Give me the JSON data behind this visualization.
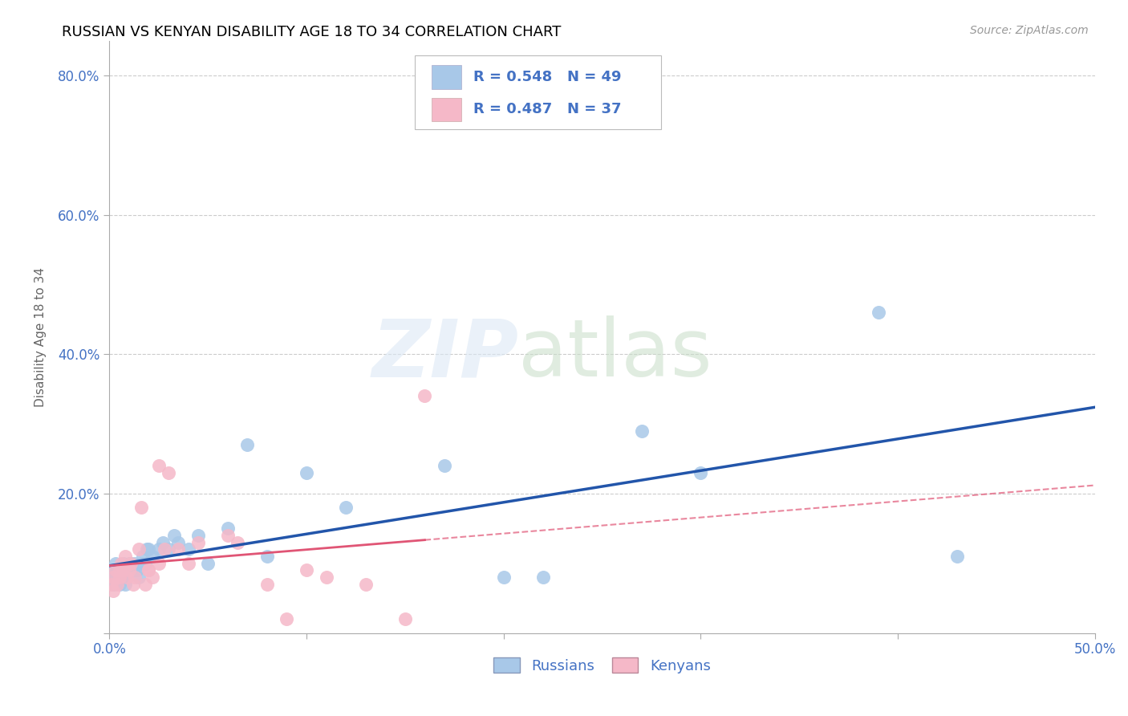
{
  "title": "RUSSIAN VS KENYAN DISABILITY AGE 18 TO 34 CORRELATION CHART",
  "source": "Source: ZipAtlas.com",
  "ylabel": "Disability Age 18 to 34",
  "xlim": [
    0.0,
    0.5
  ],
  "ylim": [
    0.0,
    0.85
  ],
  "xticks": [
    0.0,
    0.1,
    0.2,
    0.3,
    0.4,
    0.5
  ],
  "yticks": [
    0.0,
    0.2,
    0.4,
    0.6,
    0.8
  ],
  "xticklabels": [
    "0.0%",
    "",
    "",
    "",
    "",
    "50.0%"
  ],
  "yticklabels": [
    "",
    "20.0%",
    "40.0%",
    "60.0%",
    "80.0%"
  ],
  "russian_R": 0.548,
  "russian_N": 49,
  "kenyan_R": 0.487,
  "kenyan_N": 37,
  "russian_color": "#a8c8e8",
  "kenyan_color": "#f5b8c8",
  "russian_line_color": "#2255aa",
  "kenyan_line_color": "#e05575",
  "russians_x": [
    0.001,
    0.002,
    0.002,
    0.003,
    0.003,
    0.004,
    0.004,
    0.005,
    0.005,
    0.006,
    0.006,
    0.007,
    0.007,
    0.008,
    0.008,
    0.009,
    0.01,
    0.01,
    0.011,
    0.012,
    0.013,
    0.014,
    0.015,
    0.016,
    0.017,
    0.018,
    0.019,
    0.02,
    0.022,
    0.025,
    0.027,
    0.03,
    0.033,
    0.035,
    0.04,
    0.045,
    0.05,
    0.06,
    0.07,
    0.08,
    0.1,
    0.12,
    0.17,
    0.2,
    0.22,
    0.27,
    0.3,
    0.39,
    0.43
  ],
  "russians_y": [
    0.08,
    0.09,
    0.07,
    0.08,
    0.1,
    0.09,
    0.08,
    0.07,
    0.09,
    0.08,
    0.09,
    0.1,
    0.08,
    0.09,
    0.07,
    0.08,
    0.1,
    0.09,
    0.1,
    0.09,
    0.1,
    0.09,
    0.08,
    0.1,
    0.11,
    0.1,
    0.12,
    0.12,
    0.11,
    0.12,
    0.13,
    0.12,
    0.14,
    0.13,
    0.12,
    0.14,
    0.1,
    0.15,
    0.27,
    0.11,
    0.23,
    0.18,
    0.24,
    0.08,
    0.08,
    0.29,
    0.23,
    0.46,
    0.11
  ],
  "kenyans_x": [
    0.001,
    0.002,
    0.002,
    0.003,
    0.004,
    0.005,
    0.005,
    0.006,
    0.007,
    0.008,
    0.009,
    0.01,
    0.011,
    0.012,
    0.013,
    0.015,
    0.016,
    0.018,
    0.02,
    0.022,
    0.025,
    0.028,
    0.03,
    0.035,
    0.04,
    0.045,
    0.06,
    0.065,
    0.08,
    0.09,
    0.1,
    0.11,
    0.13,
    0.15,
    0.16,
    0.02,
    0.025
  ],
  "kenyans_y": [
    0.07,
    0.08,
    0.06,
    0.09,
    0.07,
    0.08,
    0.09,
    0.1,
    0.09,
    0.11,
    0.08,
    0.09,
    0.1,
    0.07,
    0.08,
    0.12,
    0.18,
    0.07,
    0.09,
    0.08,
    0.1,
    0.12,
    0.23,
    0.12,
    0.1,
    0.13,
    0.14,
    0.13,
    0.07,
    0.02,
    0.09,
    0.08,
    0.07,
    0.02,
    0.34,
    0.09,
    0.24
  ],
  "kenyan_line_x_solid_end": 0.17,
  "kenyan_line_x_dashed_start": 0.17
}
